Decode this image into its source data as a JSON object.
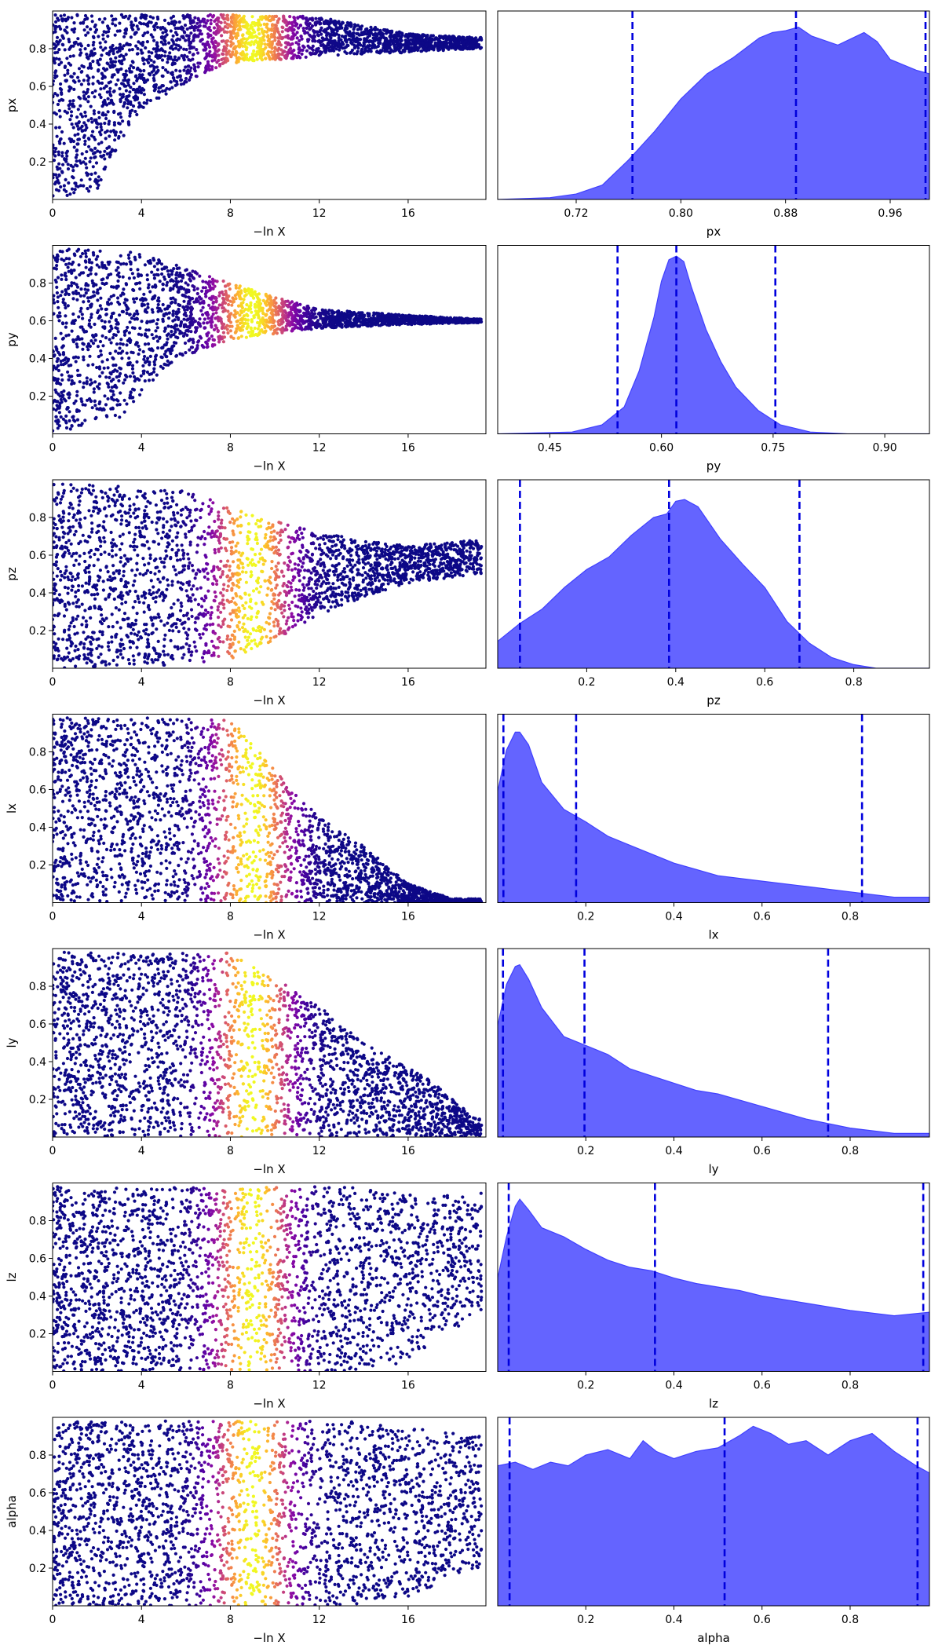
{
  "colors": {
    "scatter_low": "#0d0887",
    "kde_fill": "#6464ff",
    "kde_edge": "#4040ff",
    "quantile_line": "#0000dd"
  },
  "colormap": "plasma",
  "chart_data": [
    {
      "type": "scatter",
      "param": "px",
      "xlabel": "−ln X",
      "ylabel": "px",
      "xlim": [
        0,
        19.5
      ],
      "ylim": [
        0,
        1
      ],
      "xticks": [
        "0",
        "4",
        "8",
        "12",
        "16"
      ],
      "yticks": [
        "0.2",
        "0.4",
        "0.6",
        "0.8"
      ],
      "color_peak_x": 9,
      "color_width": 1.6,
      "envelope": [
        [
          0,
          0.0,
          0.98
        ],
        [
          2,
          0.05,
          0.98
        ],
        [
          3,
          0.3,
          0.98
        ],
        [
          4,
          0.48,
          0.98
        ],
        [
          6,
          0.62,
          0.98
        ],
        [
          8,
          0.72,
          0.98
        ],
        [
          12,
          0.76,
          0.97
        ],
        [
          16,
          0.78,
          0.88
        ],
        [
          19,
          0.8,
          0.86
        ]
      ]
    },
    {
      "type": "area",
      "param": "px",
      "xlabel": "px",
      "xlim": [
        0.66,
        0.99
      ],
      "ylim": [
        0,
        1.05
      ],
      "xticks": [
        "0.72",
        "0.80",
        "0.88",
        "0.96"
      ],
      "quantiles": [
        0.763,
        0.888,
        0.987
      ],
      "x": [
        0.66,
        0.7,
        0.72,
        0.74,
        0.75,
        0.76,
        0.78,
        0.8,
        0.82,
        0.84,
        0.86,
        0.87,
        0.88,
        0.89,
        0.9,
        0.92,
        0.94,
        0.95,
        0.96,
        0.98,
        0.99
      ],
      "values": [
        0.0,
        0.01,
        0.03,
        0.08,
        0.15,
        0.22,
        0.38,
        0.56,
        0.7,
        0.79,
        0.9,
        0.93,
        0.94,
        0.96,
        0.91,
        0.86,
        0.93,
        0.88,
        0.78,
        0.72,
        0.7
      ]
    },
    {
      "type": "scatter",
      "param": "py",
      "xlabel": "−ln X",
      "ylabel": "py",
      "xlim": [
        0,
        19.5
      ],
      "ylim": [
        0,
        1
      ],
      "xticks": [
        "0",
        "4",
        "8",
        "12",
        "16"
      ],
      "yticks": [
        "0.2",
        "0.4",
        "0.6",
        "0.8"
      ],
      "color_peak_x": 9,
      "color_width": 1.6,
      "envelope": [
        [
          0,
          0.0,
          0.98
        ],
        [
          3,
          0.08,
          0.98
        ],
        [
          5,
          0.35,
          0.92
        ],
        [
          8,
          0.5,
          0.8
        ],
        [
          12,
          0.56,
          0.66
        ],
        [
          16,
          0.58,
          0.63
        ],
        [
          19,
          0.59,
          0.61
        ]
      ]
    },
    {
      "type": "area",
      "param": "py",
      "xlabel": "py",
      "xlim": [
        0.38,
        0.96
      ],
      "ylim": [
        0,
        1.05
      ],
      "xticks": [
        "0.45",
        "0.60",
        "0.75",
        "0.90"
      ],
      "quantiles": [
        0.541,
        0.62,
        0.753
      ],
      "x": [
        0.38,
        0.48,
        0.52,
        0.55,
        0.57,
        0.59,
        0.6,
        0.61,
        0.62,
        0.63,
        0.64,
        0.66,
        0.68,
        0.7,
        0.73,
        0.76,
        0.8,
        0.85,
        0.96
      ],
      "values": [
        0.0,
        0.01,
        0.05,
        0.15,
        0.35,
        0.65,
        0.85,
        0.97,
        0.99,
        0.96,
        0.82,
        0.58,
        0.4,
        0.26,
        0.13,
        0.05,
        0.01,
        0.0,
        0.0
      ]
    },
    {
      "type": "scatter",
      "param": "pz",
      "xlabel": "−ln X",
      "ylabel": "pz",
      "xlim": [
        0,
        19.5
      ],
      "ylim": [
        0,
        1
      ],
      "xticks": [
        "0",
        "4",
        "8",
        "12",
        "16"
      ],
      "yticks": [
        "0.2",
        "0.4",
        "0.6",
        "0.8"
      ],
      "color_peak_x": 9,
      "color_width": 1.6,
      "envelope": [
        [
          0,
          0.0,
          0.98
        ],
        [
          6,
          0.02,
          0.95
        ],
        [
          8,
          0.05,
          0.85
        ],
        [
          10,
          0.15,
          0.78
        ],
        [
          12,
          0.28,
          0.72
        ],
        [
          14,
          0.38,
          0.68
        ],
        [
          16,
          0.45,
          0.65
        ],
        [
          19,
          0.5,
          0.68
        ]
      ]
    },
    {
      "type": "area",
      "param": "pz",
      "xlabel": "pz",
      "xlim": [
        0.0,
        0.97
      ],
      "ylim": [
        0,
        1.05
      ],
      "xticks": [
        "0.2",
        "0.4",
        "0.6",
        "0.8"
      ],
      "quantiles": [
        0.05,
        0.385,
        0.678
      ],
      "x": [
        0.0,
        0.05,
        0.1,
        0.15,
        0.2,
        0.25,
        0.3,
        0.35,
        0.38,
        0.4,
        0.42,
        0.45,
        0.5,
        0.55,
        0.6,
        0.65,
        0.7,
        0.75,
        0.8,
        0.85,
        0.97
      ],
      "values": [
        0.15,
        0.25,
        0.33,
        0.45,
        0.55,
        0.62,
        0.74,
        0.84,
        0.86,
        0.93,
        0.94,
        0.9,
        0.72,
        0.58,
        0.45,
        0.26,
        0.14,
        0.06,
        0.02,
        0.0,
        0.0
      ]
    },
    {
      "type": "scatter",
      "param": "lx",
      "xlabel": "−ln X",
      "ylabel": "lx",
      "xlim": [
        0,
        19.5
      ],
      "ylim": [
        0,
        1
      ],
      "xticks": [
        "0",
        "4",
        "8",
        "12",
        "16"
      ],
      "yticks": [
        "0.2",
        "0.4",
        "0.6",
        "0.8"
      ],
      "color_peak_x": 9,
      "color_width": 1.6,
      "envelope": [
        [
          0,
          0.0,
          0.98
        ],
        [
          8,
          0.0,
          0.98
        ],
        [
          10,
          0.0,
          0.7
        ],
        [
          12,
          0.0,
          0.45
        ],
        [
          14,
          0.0,
          0.3
        ],
        [
          16,
          0.0,
          0.1
        ],
        [
          18,
          0.0,
          0.02
        ]
      ]
    },
    {
      "type": "area",
      "param": "lx",
      "xlabel": "lx",
      "xlim": [
        0.0,
        0.98
      ],
      "ylim": [
        0,
        1.05
      ],
      "xticks": [
        "0.2",
        "0.4",
        "0.6",
        "0.8"
      ],
      "quantiles": [
        0.013,
        0.178,
        0.827
      ],
      "x": [
        0.0,
        0.02,
        0.04,
        0.05,
        0.07,
        0.1,
        0.15,
        0.2,
        0.25,
        0.3,
        0.4,
        0.5,
        0.6,
        0.7,
        0.8,
        0.9,
        0.98
      ],
      "values": [
        0.62,
        0.85,
        0.95,
        0.95,
        0.88,
        0.67,
        0.52,
        0.45,
        0.37,
        0.32,
        0.22,
        0.15,
        0.12,
        0.09,
        0.06,
        0.03,
        0.03
      ]
    },
    {
      "type": "scatter",
      "param": "ly",
      "xlabel": "−ln X",
      "ylabel": "ly",
      "xlim": [
        0,
        19.5
      ],
      "ylim": [
        0,
        1
      ],
      "xticks": [
        "0",
        "4",
        "8",
        "12",
        "16"
      ],
      "yticks": [
        "0.2",
        "0.4",
        "0.6",
        "0.8"
      ],
      "color_peak_x": 9,
      "color_width": 1.6,
      "envelope": [
        [
          0,
          0.0,
          0.98
        ],
        [
          8,
          0.0,
          0.98
        ],
        [
          12,
          0.0,
          0.7
        ],
        [
          14,
          0.0,
          0.5
        ],
        [
          17,
          0.0,
          0.3
        ],
        [
          19,
          0.0,
          0.1
        ]
      ]
    },
    {
      "type": "area",
      "param": "ly",
      "xlabel": "ly",
      "xlim": [
        0.0,
        0.98
      ],
      "ylim": [
        0,
        1.05
      ],
      "xticks": [
        "0.2",
        "0.4",
        "0.6",
        "0.8"
      ],
      "quantiles": [
        0.012,
        0.197,
        0.75
      ],
      "x": [
        0.0,
        0.02,
        0.04,
        0.05,
        0.07,
        0.1,
        0.15,
        0.2,
        0.25,
        0.3,
        0.35,
        0.4,
        0.45,
        0.5,
        0.6,
        0.7,
        0.8,
        0.9,
        0.98
      ],
      "values": [
        0.62,
        0.85,
        0.95,
        0.96,
        0.88,
        0.72,
        0.56,
        0.51,
        0.46,
        0.38,
        0.34,
        0.3,
        0.26,
        0.24,
        0.17,
        0.1,
        0.05,
        0.02,
        0.02
      ]
    },
    {
      "type": "scatter",
      "param": "lz",
      "xlabel": "−ln X",
      "ylabel": "lz",
      "xlim": [
        0,
        19.5
      ],
      "ylim": [
        0,
        1
      ],
      "xticks": [
        "0",
        "4",
        "8",
        "12",
        "16"
      ],
      "yticks": [
        "0.2",
        "0.4",
        "0.6",
        "0.8"
      ],
      "color_peak_x": 9,
      "color_width": 1.6,
      "envelope": [
        [
          0,
          0.0,
          0.98
        ],
        [
          13,
          0.0,
          0.98
        ],
        [
          16,
          0.05,
          0.95
        ],
        [
          19,
          0.3,
          0.95
        ]
      ]
    },
    {
      "type": "area",
      "param": "lz",
      "xlabel": "lz",
      "xlim": [
        0.0,
        0.98
      ],
      "ylim": [
        0,
        1.05
      ],
      "xticks": [
        "0.2",
        "0.4",
        "0.6",
        "0.8"
      ],
      "quantiles": [
        0.025,
        0.357,
        0.966
      ],
      "x": [
        0.0,
        0.02,
        0.04,
        0.05,
        0.07,
        0.1,
        0.15,
        0.2,
        0.25,
        0.3,
        0.35,
        0.4,
        0.45,
        0.5,
        0.55,
        0.6,
        0.7,
        0.8,
        0.9,
        0.98
      ],
      "values": [
        0.52,
        0.75,
        0.92,
        0.96,
        0.9,
        0.8,
        0.75,
        0.68,
        0.62,
        0.58,
        0.56,
        0.52,
        0.49,
        0.47,
        0.45,
        0.42,
        0.38,
        0.34,
        0.31,
        0.33
      ]
    },
    {
      "type": "scatter",
      "param": "alpha",
      "xlabel": "−ln X",
      "ylabel": "alpha",
      "xlim": [
        0,
        19.5
      ],
      "ylim": [
        0,
        1
      ],
      "xticks": [
        "0",
        "4",
        "8",
        "12",
        "16"
      ],
      "yticks": [
        "0.2",
        "0.4",
        "0.6",
        "0.8"
      ],
      "color_peak_x": 9,
      "color_width": 1.6,
      "envelope": [
        [
          0,
          0.0,
          0.98
        ],
        [
          13,
          0.0,
          0.98
        ],
        [
          16,
          0.05,
          0.95
        ],
        [
          19,
          0.2,
          0.9
        ]
      ]
    },
    {
      "type": "area",
      "param": "alpha",
      "xlabel": "alpha",
      "xlim": [
        0.0,
        0.98
      ],
      "ylim": [
        0,
        1.05
      ],
      "xticks": [
        "0.2",
        "0.4",
        "0.6",
        "0.8"
      ],
      "quantiles": [
        0.027,
        0.515,
        0.953
      ],
      "x": [
        0.0,
        0.04,
        0.08,
        0.12,
        0.16,
        0.2,
        0.25,
        0.3,
        0.33,
        0.36,
        0.4,
        0.45,
        0.5,
        0.55,
        0.58,
        0.62,
        0.66,
        0.7,
        0.75,
        0.8,
        0.85,
        0.9,
        0.95,
        0.98
      ],
      "values": [
        0.78,
        0.8,
        0.76,
        0.8,
        0.78,
        0.84,
        0.87,
        0.82,
        0.92,
        0.86,
        0.82,
        0.86,
        0.88,
        0.95,
        1.0,
        0.96,
        0.9,
        0.92,
        0.84,
        0.92,
        0.96,
        0.86,
        0.78,
        0.74
      ]
    }
  ]
}
